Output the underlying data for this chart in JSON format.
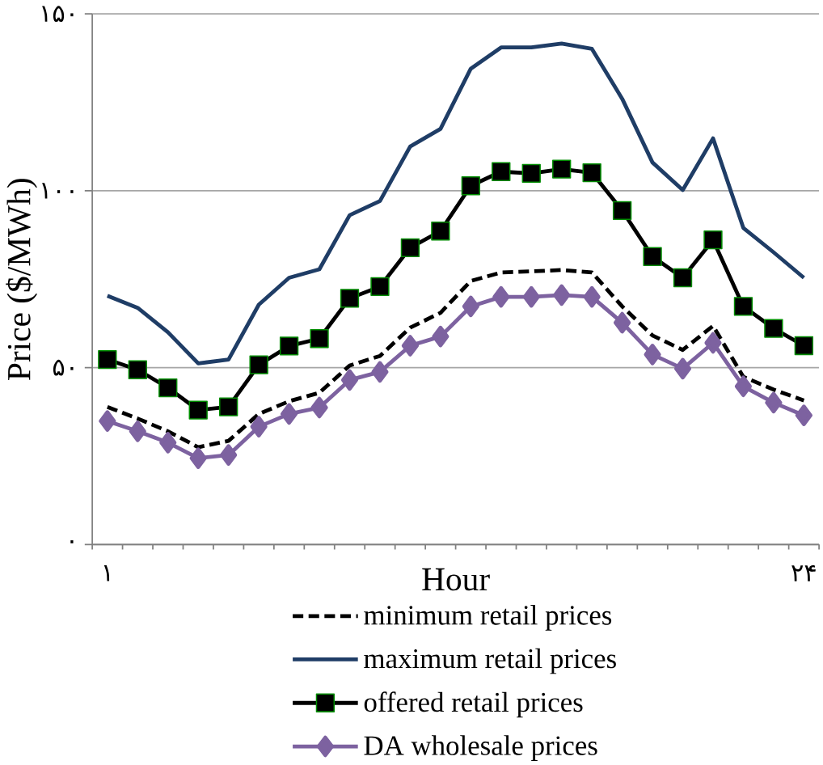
{
  "chart_data": {
    "type": "line",
    "xlabel": "Hour",
    "ylabel": "Price ($/MWh)",
    "categories": [
      "۱",
      null,
      null,
      null,
      null,
      null,
      null,
      null,
      null,
      null,
      null,
      null,
      null,
      null,
      null,
      null,
      null,
      null,
      null,
      null,
      null,
      null,
      null,
      "۲۴"
    ],
    "ylim": [
      0,
      150
    ],
    "yticks": [
      {
        "value": 0,
        "label": "۰"
      },
      {
        "value": 50,
        "label": "۵۰"
      },
      {
        "value": 100,
        "label": "۱۰۰"
      },
      {
        "value": 150,
        "label": "۱۵۰"
      }
    ],
    "grid": "y",
    "legend": "bottom",
    "series": [
      {
        "name": "minimum retail prices",
        "color": "#000000",
        "line_style": "dashed",
        "marker": "none",
        "values": [
          38.9,
          35.6,
          32,
          27.5,
          29.3,
          36.9,
          40.5,
          42.9,
          50.6,
          53.3,
          61.3,
          65.5,
          74.5,
          76.9,
          77.2,
          77.6,
          76.9,
          67.3,
          59.1,
          55,
          61.8,
          47.4,
          43.8,
          40.7
        ]
      },
      {
        "name": "maximum retail prices",
        "color": "#1f3d66",
        "line_style": "solid",
        "marker": "none",
        "values": [
          70.3,
          66.9,
          60,
          51.2,
          52.3,
          67.8,
          75.4,
          77.8,
          93.1,
          97.1,
          112.5,
          117.5,
          134.5,
          140.5,
          140.5,
          141.6,
          140.1,
          126,
          108,
          100.2,
          114.8,
          89.5,
          82.6,
          75.4
        ]
      },
      {
        "name": "offered retail prices",
        "color": "#000000",
        "line_style": "solid",
        "marker": "square",
        "values": [
          52.3,
          49.4,
          44.3,
          38,
          38.9,
          50.8,
          56.1,
          58.2,
          69.6,
          72.9,
          83.9,
          88.6,
          101.4,
          105.4,
          104.9,
          106.1,
          105.1,
          94.4,
          81.4,
          75.4,
          86.1,
          67.3,
          61.1,
          56.2
        ]
      },
      {
        "name": "DA wholesale prices",
        "color": "#7d62a0",
        "line_style": "solid",
        "marker": "diamond",
        "values": [
          34.9,
          32,
          28.8,
          24.4,
          25.3,
          33.3,
          36.9,
          38.7,
          46.5,
          48.8,
          56.2,
          58.8,
          67.3,
          70,
          70,
          70.5,
          70,
          62.7,
          53.7,
          49.7,
          57,
          44.7,
          40.1,
          36.5
        ]
      }
    ]
  }
}
